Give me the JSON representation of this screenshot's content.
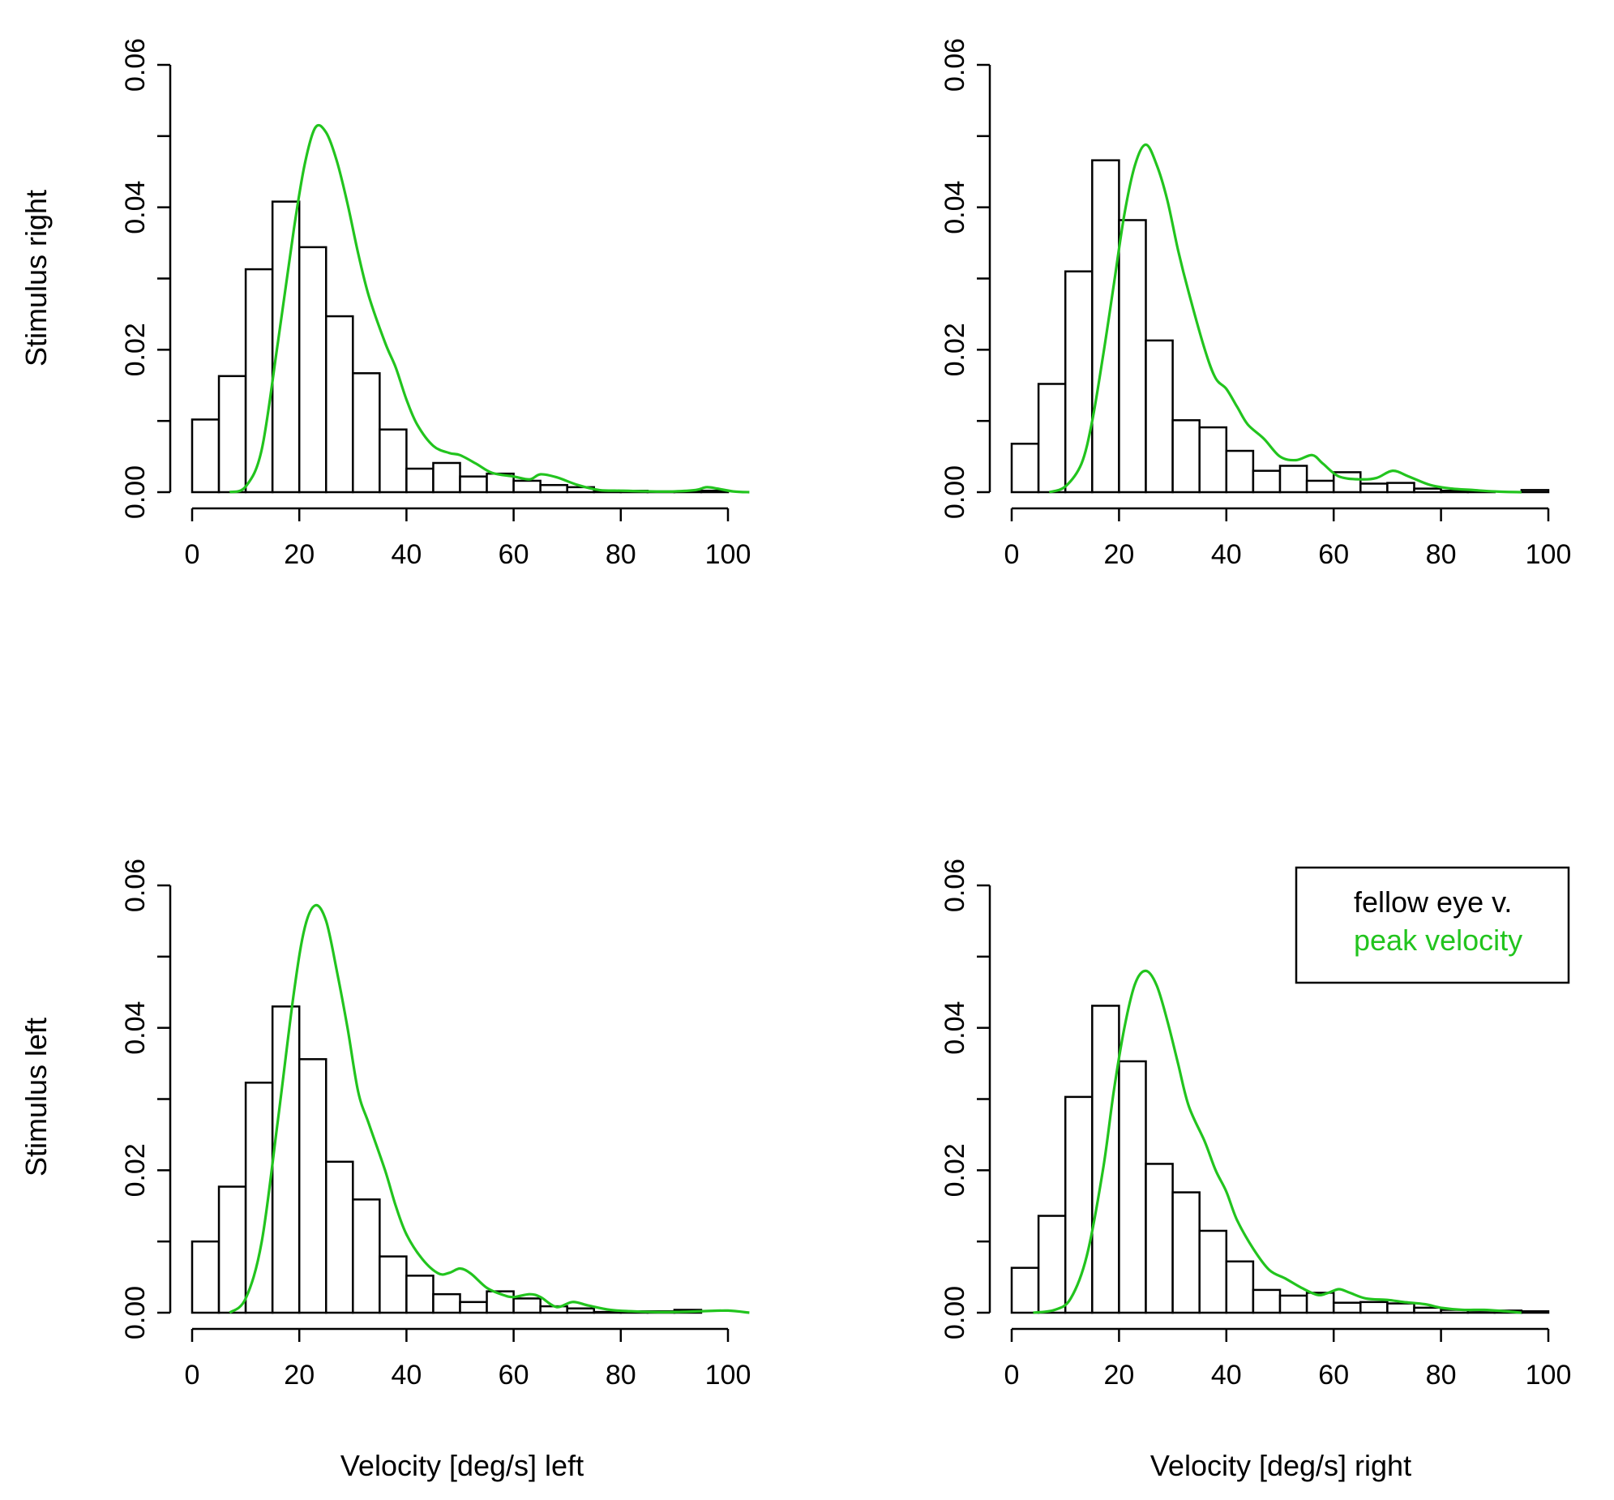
{
  "figure": {
    "row_labels": [
      "Stimulus right",
      "Stimulus left"
    ],
    "col_labels": [
      "Velocity [deg/s] left",
      "Velocity [deg/s] right"
    ],
    "legend": {
      "entries": [
        {
          "label": "fellow eye v.",
          "color": "#000000"
        },
        {
          "label": "peak velocity",
          "color": "#22c41e"
        }
      ],
      "placement": "top-right of bottom-right panel"
    },
    "colors": {
      "bars_stroke": "#000000",
      "bars_fill": "#ffffff",
      "density": "#22c41e"
    }
  },
  "chart_data": [
    {
      "type": "bar",
      "panel": "top-left",
      "title": "",
      "xlabel": "",
      "ylabel": "Stimulus right",
      "xlim": [
        0,
        100
      ],
      "ylim": [
        0,
        0.06
      ],
      "xticks": [
        "0",
        "20",
        "40",
        "60",
        "80",
        "100"
      ],
      "yticks": [
        "0.00",
        "0.02",
        "0.04",
        "0.06"
      ],
      "bin_width": 5,
      "bin_start": 0,
      "series": [
        {
          "name": "fellow eye v.",
          "kind": "histogram",
          "values": [
            0.0102,
            0.0163,
            0.0313,
            0.0408,
            0.0344,
            0.0247,
            0.0167,
            0.0088,
            0.0033,
            0.0041,
            0.0022,
            0.0026,
            0.0016,
            0.001,
            0.0007,
            0.0002,
            0.0002,
            0.0001,
            0.0001,
            0.0002,
            0
          ]
        },
        {
          "name": "peak velocity",
          "kind": "density",
          "x": [
            7,
            10,
            13,
            16,
            19,
            21,
            23,
            25,
            27,
            29,
            31,
            33,
            36,
            38,
            40,
            42,
            45,
            48,
            50,
            53,
            56,
            60,
            63,
            65,
            68,
            72,
            76,
            80,
            86,
            90,
            94,
            96,
            98,
            101,
            104
          ],
          "y": [
            0,
            0.0008,
            0.006,
            0.021,
            0.037,
            0.046,
            0.0512,
            0.0505,
            0.0465,
            0.0405,
            0.0335,
            0.0275,
            0.021,
            0.0175,
            0.013,
            0.0095,
            0.0065,
            0.0055,
            0.0052,
            0.004,
            0.0027,
            0.0022,
            0.0018,
            0.0025,
            0.0021,
            0.001,
            0.0003,
            0.0002,
            0.0001,
            0.0001,
            0.0003,
            0.0007,
            0.0005,
            0.0001,
            0
          ]
        }
      ]
    },
    {
      "type": "bar",
      "panel": "top-right",
      "title": "",
      "xlabel": "",
      "ylabel": "",
      "xlim": [
        0,
        100
      ],
      "ylim": [
        0,
        0.06
      ],
      "xticks": [
        "0",
        "20",
        "40",
        "60",
        "80",
        "100"
      ],
      "yticks": [
        "0.00",
        "0.02",
        "0.04",
        "0.06"
      ],
      "bin_width": 5,
      "bin_start": 0,
      "series": [
        {
          "name": "fellow eye v.",
          "kind": "histogram",
          "values": [
            0.0068,
            0.0152,
            0.031,
            0.0466,
            0.0382,
            0.0213,
            0.0101,
            0.0091,
            0.0058,
            0.003,
            0.0037,
            0.0016,
            0.0028,
            0.0012,
            0.0013,
            0.0005,
            0.0002,
            0.0001,
            0,
            0.0003
          ]
        },
        {
          "name": "peak velocity",
          "kind": "density",
          "x": [
            7,
            10,
            13,
            15,
            17,
            19,
            21,
            23,
            25,
            27,
            29,
            31,
            33,
            36,
            38,
            40,
            42,
            44,
            47,
            50,
            53,
            56,
            58,
            61,
            65,
            68,
            71,
            74,
            78,
            82,
            86,
            90,
            95
          ],
          "y": [
            0,
            0.0008,
            0.004,
            0.01,
            0.019,
            0.029,
            0.039,
            0.046,
            0.0488,
            0.046,
            0.041,
            0.034,
            0.028,
            0.02,
            0.016,
            0.0145,
            0.012,
            0.0095,
            0.0075,
            0.005,
            0.0045,
            0.0052,
            0.004,
            0.0022,
            0.0018,
            0.002,
            0.003,
            0.0022,
            0.001,
            0.0005,
            0.0003,
            0.0001,
            0
          ]
        }
      ]
    },
    {
      "type": "bar",
      "panel": "bottom-left",
      "title": "",
      "xlabel": "Velocity [deg/s] left",
      "ylabel": "Stimulus left",
      "xlim": [
        0,
        100
      ],
      "ylim": [
        0,
        0.06
      ],
      "xticks": [
        "0",
        "20",
        "40",
        "60",
        "80",
        "100"
      ],
      "yticks": [
        "0.00",
        "0.02",
        "0.04",
        "0.06"
      ],
      "bin_width": 5,
      "bin_start": 0,
      "series": [
        {
          "name": "fellow eye v.",
          "kind": "histogram",
          "values": [
            0.01,
            0.0177,
            0.0323,
            0.043,
            0.0356,
            0.0212,
            0.0159,
            0.0079,
            0.0052,
            0.0026,
            0.0015,
            0.003,
            0.002,
            0.0009,
            0.0006,
            0.0001,
            0.0002,
            0.0002,
            0.0004,
            0
          ]
        },
        {
          "name": "peak velocity",
          "kind": "density",
          "x": [
            7,
            10,
            13,
            16,
            19,
            21,
            23,
            25,
            27,
            29,
            31,
            33,
            36,
            38,
            40,
            43,
            46,
            48,
            50,
            52,
            55,
            58,
            60,
            63,
            65,
            68,
            71,
            74,
            78,
            82,
            86,
            90,
            95,
            100,
            104
          ],
          "y": [
            0,
            0.002,
            0.01,
            0.027,
            0.045,
            0.054,
            0.0572,
            0.055,
            0.048,
            0.04,
            0.031,
            0.0265,
            0.02,
            0.015,
            0.011,
            0.0075,
            0.0055,
            0.0056,
            0.0062,
            0.0055,
            0.0035,
            0.0025,
            0.0022,
            0.0026,
            0.0022,
            0.0008,
            0.0015,
            0.001,
            0.0004,
            0.0002,
            0.0001,
            0.0001,
            0.0002,
            0.0003,
            0
          ]
        }
      ]
    },
    {
      "type": "bar",
      "panel": "bottom-right",
      "title": "",
      "xlabel": "Velocity [deg/s] right",
      "ylabel": "",
      "xlim": [
        0,
        100
      ],
      "ylim": [
        0,
        0.06
      ],
      "xticks": [
        "0",
        "20",
        "40",
        "60",
        "80",
        "100"
      ],
      "yticks": [
        "0.00",
        "0.02",
        "0.04",
        "0.06"
      ],
      "bin_width": 5,
      "bin_start": 0,
      "series": [
        {
          "name": "fellow eye v.",
          "kind": "histogram",
          "values": [
            0.0063,
            0.0136,
            0.0303,
            0.0431,
            0.0353,
            0.0209,
            0.0169,
            0.0115,
            0.0072,
            0.0032,
            0.0024,
            0.0028,
            0.0014,
            0.0015,
            0.0013,
            0.0007,
            0.0004,
            0.0003,
            0.0003,
            0.0002
          ]
        },
        {
          "name": "peak velocity",
          "kind": "density",
          "x": [
            4,
            8,
            11,
            14,
            17,
            19,
            21,
            23,
            25,
            27,
            29,
            31,
            33,
            36,
            38,
            40,
            42,
            45,
            48,
            51,
            54,
            57,
            59,
            61,
            63,
            66,
            70,
            73,
            77,
            80,
            84,
            88,
            92,
            95
          ],
          "y": [
            0,
            0.0004,
            0.002,
            0.008,
            0.02,
            0.031,
            0.04,
            0.0462,
            0.048,
            0.046,
            0.041,
            0.035,
            0.029,
            0.024,
            0.02,
            0.017,
            0.013,
            0.009,
            0.006,
            0.0048,
            0.0035,
            0.0025,
            0.0028,
            0.0033,
            0.0028,
            0.002,
            0.0018,
            0.0015,
            0.0012,
            0.0007,
            0.0004,
            0.0004,
            0.0002,
            0
          ]
        }
      ]
    }
  ]
}
